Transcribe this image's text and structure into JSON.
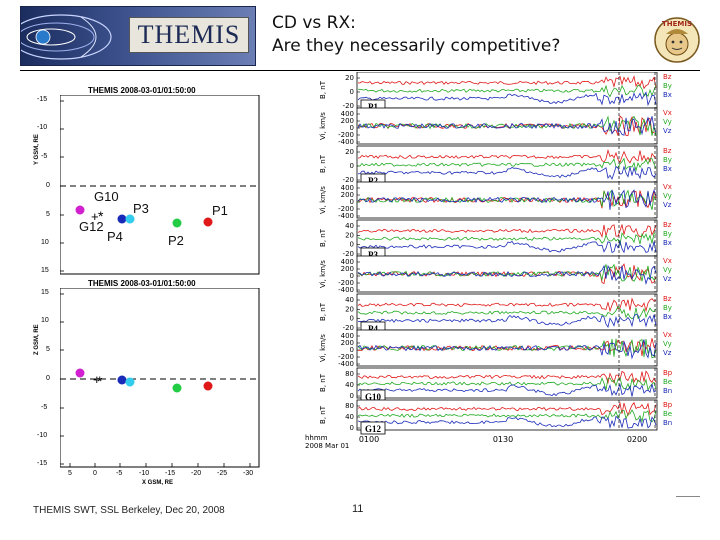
{
  "header": {
    "banner_text": "THEMIS",
    "title_line1": "CD vs RX:",
    "title_line2": "Are they necessarily competitive?",
    "logo_text": "THEMIS"
  },
  "orbit_plots": {
    "top": {
      "title": "THEMIS 2008-03-01/01:50:00",
      "ylabel": "Y GSM, RE",
      "yticks": [
        "-15",
        "-10",
        "-5",
        "0",
        "5",
        "10",
        "15"
      ],
      "labels": [
        "G10",
        "P3",
        "P1",
        "G12",
        "P4",
        "P2"
      ]
    },
    "bottom": {
      "title": "THEMIS 2008-03-01/01:50:00",
      "ylabel": "Z GSM, RE",
      "xlabel": "X GSM, RE",
      "yticks": [
        "15",
        "10",
        "5",
        "0",
        "-5",
        "-10",
        "-15"
      ],
      "xticks": [
        "5",
        "0",
        "-5",
        "-10",
        "-15",
        "-20",
        "-25",
        "-30"
      ]
    },
    "colors": {
      "P1": "#e01818",
      "P2": "#22cc44",
      "P3": "#33ccee",
      "P4": "#1a2ab8",
      "G": "#d020d0"
    }
  },
  "panels": [
    {
      "id": "P1",
      "b_label": "B, nT",
      "v_label": "Vi, km/s",
      "b_ticks": [
        "20",
        "0",
        "-20"
      ],
      "v_ticks": [
        "400",
        "200",
        "0",
        "-200",
        "-400"
      ],
      "b_legend": [
        "Bz",
        "By",
        "Bx"
      ],
      "v_legend": [
        "Vx",
        "Vy",
        "Vz"
      ]
    },
    {
      "id": "P2",
      "b_label": "B, nT",
      "v_label": "Vi, km/s",
      "b_ticks": [
        "20",
        "0",
        "-20"
      ],
      "v_ticks": [
        "400",
        "200",
        "0",
        "-200",
        "-400"
      ],
      "b_legend": [
        "Bz",
        "By",
        "Bx"
      ],
      "v_legend": [
        "Vx",
        "Vy",
        "Vz"
      ]
    },
    {
      "id": "P3",
      "b_label": "B, nT",
      "v_label": "Vi, km/s",
      "b_ticks": [
        "40",
        "20",
        "0",
        "-20"
      ],
      "v_ticks": [
        "400",
        "200",
        "0",
        "-200",
        "-400"
      ],
      "b_legend": [
        "Bz",
        "By",
        "Bx"
      ],
      "v_legend": [
        "Vx",
        "Vy",
        "Vz"
      ]
    },
    {
      "id": "P4",
      "b_label": "B, nT",
      "v_label": "Vi, km/s",
      "b_ticks": [
        "40",
        "20",
        "0",
        "-20"
      ],
      "v_ticks": [
        "400",
        "200",
        "0",
        "-200",
        "-400"
      ],
      "b_legend": [
        "Bz",
        "By",
        "Bx"
      ],
      "v_legend": [
        "Vx",
        "Vy",
        "Vz"
      ]
    },
    {
      "id": "G10",
      "b_label": "B, nT",
      "b_ticks": [
        "80",
        "40",
        "0"
      ],
      "b_legend": [
        "Bp",
        "Be",
        "Bn"
      ]
    },
    {
      "id": "G12",
      "b_label": "B, nT",
      "b_ticks": [
        "80",
        "40",
        "0"
      ],
      "b_legend": [
        "Bp",
        "Be",
        "Bn"
      ]
    }
  ],
  "time_axis": {
    "unit": "hhmm",
    "date": "2008 Mar 01",
    "ticks": [
      "0100",
      "0130",
      "0200"
    ]
  },
  "legend_colors": {
    "z": "#e01818",
    "y": "#22aa22",
    "x": "#1a2ab8"
  },
  "footer": {
    "left": "THEMIS SWT, SSL Berkeley, Dec 20, 2008",
    "page": "11"
  }
}
